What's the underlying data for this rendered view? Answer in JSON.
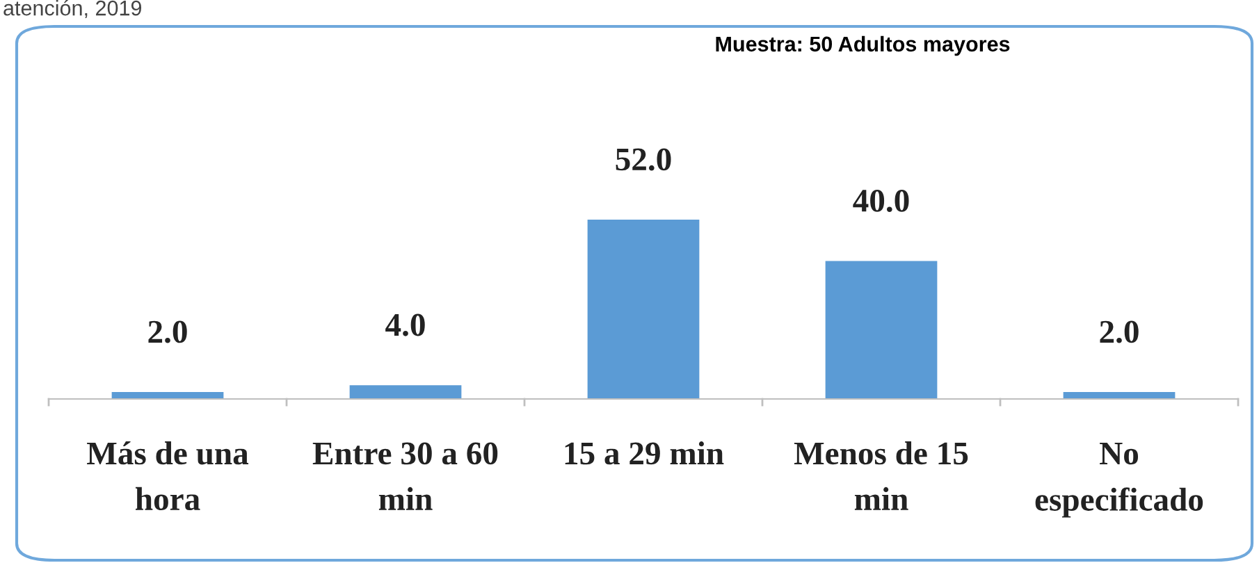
{
  "chart_data": {
    "type": "bar",
    "subtitle": "Muestra: 50 Adultos mayores",
    "annotations": [
      "atención, 2019"
    ],
    "categories": [
      "Más de una\nhora",
      "Entre 30 a 60\nmin",
      "15 a 29 min",
      "Menos de 15\nmin",
      "No\nespecificado"
    ],
    "values": [
      2.0,
      4.0,
      52.0,
      40.0,
      2.0
    ],
    "value_labels": [
      "2.0",
      "4.0",
      "52.0",
      "40.0",
      "2.0"
    ],
    "color": "#5b9bd5",
    "grid": false,
    "legend": false
  }
}
